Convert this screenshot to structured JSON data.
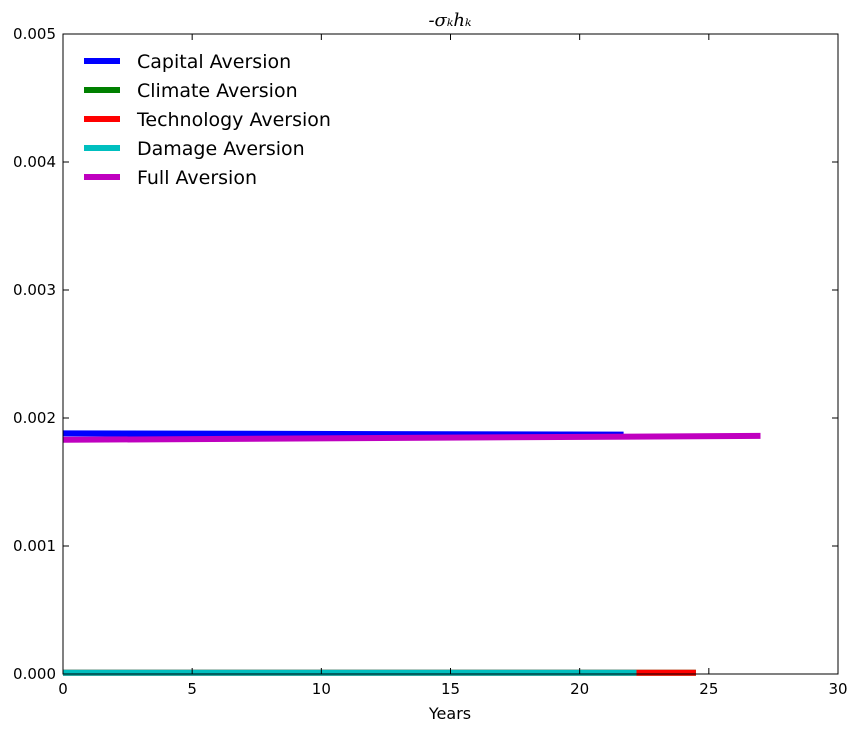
{
  "chart_data": {
    "type": "line",
    "title": "-σₖhₖ",
    "xlabel": "Years",
    "ylabel": "",
    "xlim": [
      0,
      30
    ],
    "ylim": [
      0,
      0.005
    ],
    "xticks": [
      "0",
      "5",
      "10",
      "15",
      "20",
      "25",
      "30"
    ],
    "yticks": [
      "0.000",
      "0.001",
      "0.002",
      "0.003",
      "0.004",
      "0.005"
    ],
    "grid": false,
    "legend_position": "top-left",
    "series": [
      {
        "name": "Capital Aversion",
        "color": "#0000ff",
        "x": [
          0,
          21.7
        ],
        "y": [
          0.00188,
          0.00187
        ]
      },
      {
        "name": "Climate Aversion",
        "color": "#008000",
        "x": [
          0,
          24.5
        ],
        "y": [
          1e-05,
          1e-05
        ]
      },
      {
        "name": "Technology Aversion",
        "color": "#ff0000",
        "x": [
          0,
          24.5
        ],
        "y": [
          1e-05,
          1e-05
        ]
      },
      {
        "name": "Damage Aversion",
        "color": "#00bfbf",
        "x": [
          0,
          22.2
        ],
        "y": [
          1e-05,
          1e-05
        ]
      },
      {
        "name": "Full Aversion",
        "color": "#bf00bf",
        "x": [
          0,
          27.0
        ],
        "y": [
          0.00183,
          0.00186
        ]
      }
    ]
  }
}
